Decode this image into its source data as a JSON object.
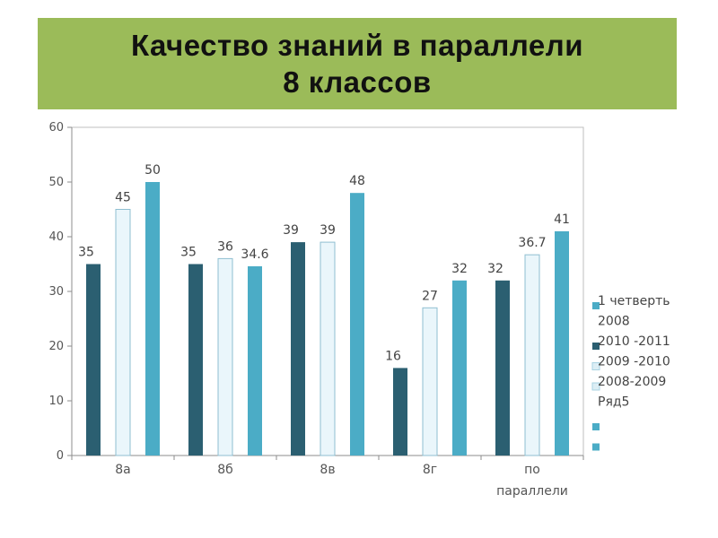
{
  "title": {
    "line1": "Качество знаний в параллели",
    "line2": "8 классов"
  },
  "chart_data": {
    "type": "bar",
    "categories": [
      "8а",
      "8б",
      "8в",
      "8г",
      "по параллели"
    ],
    "ylim": [
      0,
      60
    ],
    "yticks": [
      0,
      10,
      20,
      30,
      40,
      50,
      60
    ],
    "grid": false,
    "legend_position": "right",
    "series": [
      {
        "name": "2010 -2011",
        "color": "#2b5f71",
        "values": [
          35,
          35,
          39,
          16,
          32
        ],
        "labels": [
          "35",
          "35",
          "39",
          "16",
          "32"
        ]
      },
      {
        "name": "2009 -2010",
        "color": "#eaf6fb",
        "values": [
          45,
          36,
          39,
          27,
          36.7
        ],
        "labels": [
          "45",
          "36",
          "39",
          "27",
          "36.7"
        ]
      },
      {
        "name": "1 четверть 2008",
        "color": "#4bacc6",
        "values": [
          50,
          34.6,
          48,
          32,
          41
        ],
        "labels": [
          "50",
          "34.6",
          "48",
          "32",
          "41"
        ]
      }
    ],
    "legend_entries": [
      {
        "text": "1 четверть",
        "color": "#4bacc6"
      },
      {
        "text": "2008",
        "color": ""
      },
      {
        "text": "2010 -2011",
        "color": "#2b5f71"
      },
      {
        "text": "2009 -2010",
        "color": "#dceef5"
      },
      {
        "text": "2008-2009",
        "color": "#dceef5"
      },
      {
        "text": "Ряд5",
        "color": ""
      },
      {
        "text": "",
        "color": "#4bacc6"
      },
      {
        "text": "",
        "color": "#4bacc6"
      }
    ]
  }
}
